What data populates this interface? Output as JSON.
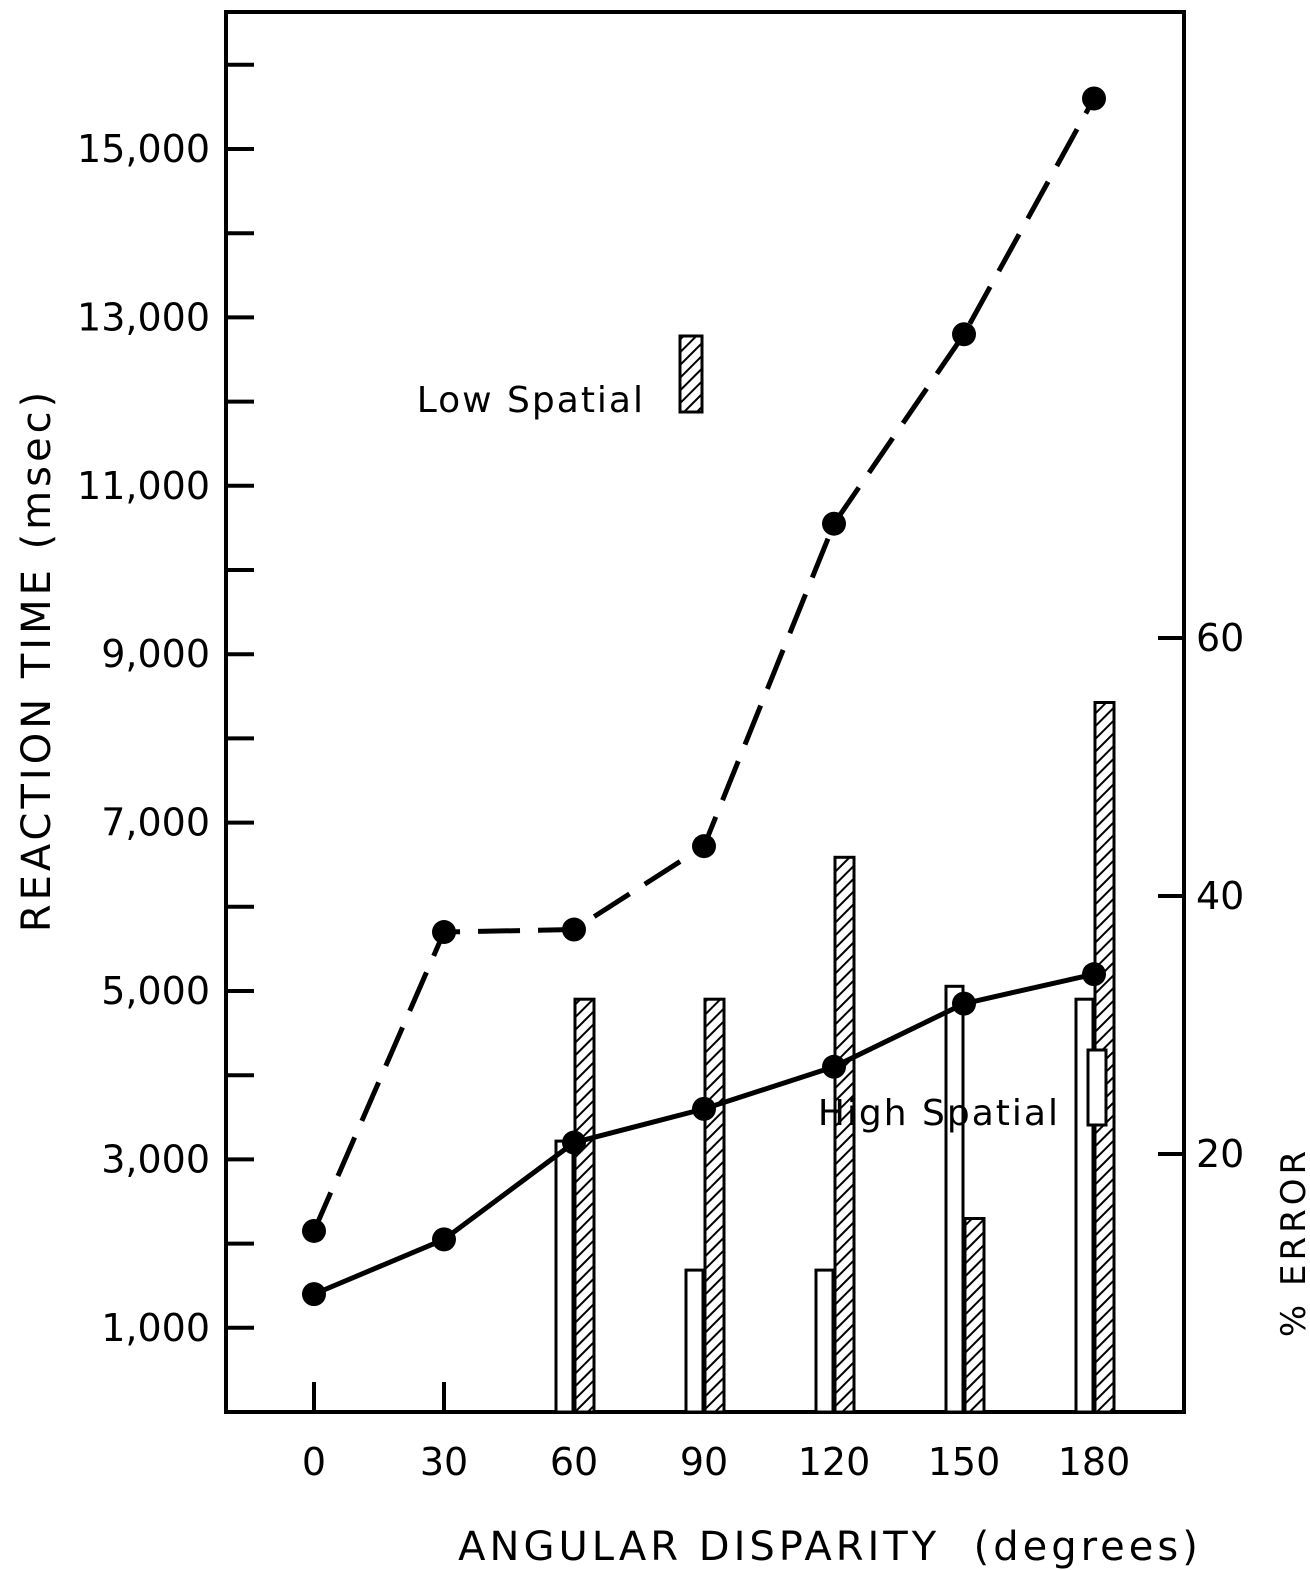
{
  "chart_data": {
    "type": "line",
    "xlabel": "ANGULAR DISPARITY  (degrees)",
    "ylabel": "REACTION TIME (msec)",
    "y2label": "% ERROR",
    "x_ticks": [
      "0",
      "30",
      "60",
      "90",
      "120",
      "150",
      "180"
    ],
    "x_values": [
      0,
      30,
      60,
      90,
      120,
      150,
      180
    ],
    "y_ticks": [
      "1,000",
      "3,000",
      "5,000",
      "7,000",
      "9,000",
      "11,000",
      "13,000",
      "15,000"
    ],
    "y_tick_values": [
      1000,
      3000,
      5000,
      7000,
      9000,
      11000,
      13000,
      15000
    ],
    "y2_ticks": [
      "20",
      "40",
      "60"
    ],
    "y2_tick_values": [
      20,
      40,
      60
    ],
    "ylim": [
      0,
      16500
    ],
    "y2lim": [
      0,
      60
    ],
    "series": [
      {
        "name": "Low Spatial",
        "style": "dashed",
        "x": [
          0,
          30,
          60,
          90,
          120,
          150,
          180
        ],
        "values": [
          2150,
          5700,
          5730,
          6720,
          10550,
          12800,
          15600
        ]
      },
      {
        "name": "High Spatial",
        "style": "solid",
        "x": [
          0,
          30,
          60,
          90,
          120,
          150,
          180
        ],
        "values": [
          1400,
          2050,
          3200,
          3600,
          4100,
          4850,
          5200
        ]
      }
    ],
    "error_bars": {
      "x": [
        60,
        90,
        120,
        150,
        180
      ],
      "high_spatial": [
        21,
        11,
        11,
        33,
        32
      ],
      "low_spatial": [
        32,
        32,
        43,
        15,
        55
      ]
    },
    "legend": [
      {
        "label": "Low Spatial",
        "pattern": "hatched"
      },
      {
        "label": "High Spatial",
        "pattern": "open"
      }
    ]
  }
}
